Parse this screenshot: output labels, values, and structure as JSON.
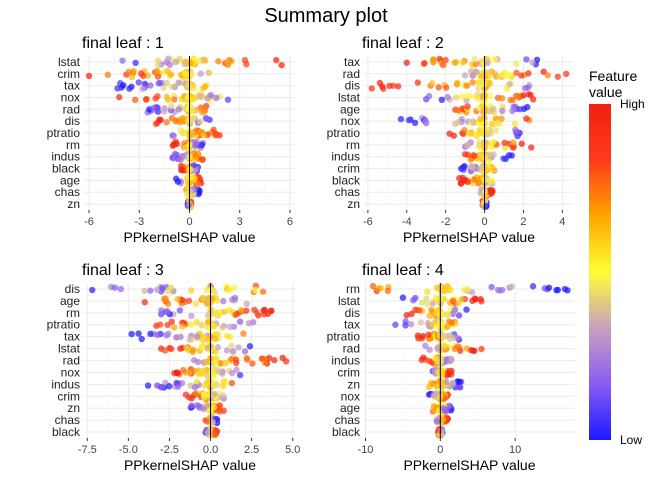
{
  "title": "Summary plot",
  "legend": {
    "title_line1": "Feature",
    "title_line2": "value",
    "high_label": "High",
    "low_label": "Low",
    "colors": [
      "#1a1aff",
      "#8a5cf0",
      "#c8a0c0",
      "#ffff33",
      "#ffa500",
      "#ff3a1a",
      "#f02010"
    ]
  },
  "chart_data": [
    {
      "type": "scatter",
      "title": "final leaf : 1",
      "xlabel": "PPkernelSHAP value",
      "xlim": [
        -6.3,
        6.3
      ],
      "xticks": [
        -6,
        -3,
        0,
        3,
        6
      ],
      "xtick_labels": [
        "-6",
        "-3",
        "0",
        "3",
        "6"
      ],
      "features": [
        {
          "name": "lstat",
          "min": -4.0,
          "max": 5.5
        },
        {
          "name": "crim",
          "min": -6.0,
          "max": 1.2
        },
        {
          "name": "tax",
          "min": -4.3,
          "max": 1.0
        },
        {
          "name": "nox",
          "min": -4.2,
          "max": 2.3
        },
        {
          "name": "rad",
          "min": -2.5,
          "max": 1.0
        },
        {
          "name": "dis",
          "min": -2.0,
          "max": 1.2
        },
        {
          "name": "ptratio",
          "min": -1.0,
          "max": 1.8
        },
        {
          "name": "rm",
          "min": -1.0,
          "max": 0.8
        },
        {
          "name": "indus",
          "min": -1.0,
          "max": 0.8
        },
        {
          "name": "black",
          "min": -0.5,
          "max": 0.5
        },
        {
          "name": "age",
          "min": -0.8,
          "max": 0.7
        },
        {
          "name": "chas",
          "min": -0.2,
          "max": 0.6
        },
        {
          "name": "zn",
          "min": -0.1,
          "max": 0.1
        }
      ]
    },
    {
      "type": "scatter",
      "title": "final leaf : 2",
      "xlabel": "PPkernelSHAP value",
      "xlim": [
        -6.2,
        4.6
      ],
      "xticks": [
        -6,
        -4,
        -2,
        0,
        2,
        4
      ],
      "xtick_labels": [
        "-6",
        "-4",
        "-2",
        "0",
        "2",
        "4"
      ],
      "features": [
        {
          "name": "tax",
          "min": -4.0,
          "max": 2.7
        },
        {
          "name": "rad",
          "min": -1.0,
          "max": 4.2
        },
        {
          "name": "dis",
          "min": -5.8,
          "max": 2.3
        },
        {
          "name": "lstat",
          "min": -3.0,
          "max": 2.5
        },
        {
          "name": "age",
          "min": -1.5,
          "max": 2.2
        },
        {
          "name": "nox",
          "min": -4.3,
          "max": 2.3
        },
        {
          "name": "ptratio",
          "min": -1.8,
          "max": 1.8
        },
        {
          "name": "rm",
          "min": -1.0,
          "max": 2.4
        },
        {
          "name": "indus",
          "min": -1.0,
          "max": 1.4
        },
        {
          "name": "crim",
          "min": -1.2,
          "max": 0.5
        },
        {
          "name": "black",
          "min": -1.3,
          "max": 0.4
        },
        {
          "name": "chas",
          "min": -0.2,
          "max": 0.4
        },
        {
          "name": "zn",
          "min": -0.1,
          "max": 0.1
        }
      ]
    },
    {
      "type": "scatter",
      "title": "final leaf : 3",
      "xlabel": "PPkernelSHAP value",
      "xlim": [
        -7.7,
        5.2
      ],
      "xticks": [
        -7.5,
        -5.0,
        -2.5,
        0.0,
        2.5,
        5.0
      ],
      "xtick_labels": [
        "-7.5",
        "-5.0",
        "-2.5",
        "0.0",
        "2.5",
        "5.0"
      ],
      "features": [
        {
          "name": "dis",
          "min": -7.2,
          "max": 3.2
        },
        {
          "name": "age",
          "min": -4.0,
          "max": 2.2
        },
        {
          "name": "rm",
          "min": -3.0,
          "max": 3.7
        },
        {
          "name": "ptratio",
          "min": -3.3,
          "max": 2.6
        },
        {
          "name": "tax",
          "min": -4.8,
          "max": 2.0
        },
        {
          "name": "lstat",
          "min": -3.0,
          "max": 2.4
        },
        {
          "name": "rad",
          "min": -1.0,
          "max": 4.6
        },
        {
          "name": "nox",
          "min": -2.2,
          "max": 1.8
        },
        {
          "name": "indus",
          "min": -3.8,
          "max": 1.3
        },
        {
          "name": "crim",
          "min": -1.5,
          "max": 0.8
        },
        {
          "name": "zn",
          "min": -1.2,
          "max": 0.8
        },
        {
          "name": "chas",
          "min": -0.3,
          "max": 0.4
        },
        {
          "name": "black",
          "min": -0.3,
          "max": 0.4
        }
      ]
    },
    {
      "type": "scatter",
      "title": "final leaf : 4",
      "xlabel": "PPkernelSHAP value",
      "xlim": [
        -10.2,
        18.0
      ],
      "xticks": [
        -10,
        0,
        10
      ],
      "xtick_labels": [
        "-10",
        "0",
        "10"
      ],
      "features": [
        {
          "name": "rm",
          "min": -9.0,
          "max": 17.0
        },
        {
          "name": "lstat",
          "min": -5.0,
          "max": 5.5
        },
        {
          "name": "dis",
          "min": -4.5,
          "max": 3.5
        },
        {
          "name": "tax",
          "min": -6.0,
          "max": 2.0
        },
        {
          "name": "ptratio",
          "min": -3.0,
          "max": 2.5
        },
        {
          "name": "rad",
          "min": -2.0,
          "max": 5.5
        },
        {
          "name": "indus",
          "min": -2.5,
          "max": 1.5
        },
        {
          "name": "crim",
          "min": -1.0,
          "max": 1.5
        },
        {
          "name": "zn",
          "min": -1.5,
          "max": 2.8
        },
        {
          "name": "nox",
          "min": -1.5,
          "max": 1.0
        },
        {
          "name": "age",
          "min": -1.0,
          "max": 1.5
        },
        {
          "name": "chas",
          "min": -0.5,
          "max": 1.0
        },
        {
          "name": "black",
          "min": -0.3,
          "max": 0.3
        }
      ]
    }
  ]
}
